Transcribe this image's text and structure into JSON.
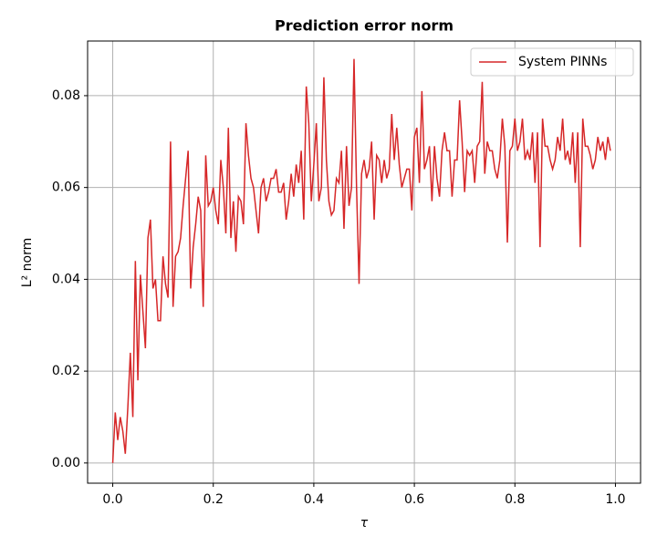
{
  "chart_data": {
    "type": "line",
    "title": "Prediction error norm",
    "xlabel": "τ",
    "ylabel": "L² norm",
    "x": [
      0,
      0.005,
      0.01,
      0.015,
      0.02,
      0.025,
      0.03,
      0.035,
      0.04,
      0.045,
      0.05,
      0.055,
      0.06,
      0.065,
      0.07,
      0.075,
      0.08,
      0.085,
      0.09,
      0.095,
      0.1,
      0.105,
      0.11,
      0.115,
      0.12,
      0.125,
      0.13,
      0.135,
      0.14,
      0.145,
      0.15,
      0.155,
      0.16,
      0.165,
      0.17,
      0.175,
      0.18,
      0.185,
      0.19,
      0.195,
      0.2,
      0.205,
      0.21,
      0.215,
      0.22,
      0.225,
      0.23,
      0.235,
      0.24,
      0.245,
      0.25,
      0.255,
      0.26,
      0.265,
      0.27,
      0.275,
      0.28,
      0.285,
      0.29,
      0.295,
      0.3,
      0.305,
      0.31,
      0.315,
      0.32,
      0.325,
      0.33,
      0.335,
      0.34,
      0.345,
      0.35,
      0.355,
      0.36,
      0.365,
      0.37,
      0.375,
      0.38,
      0.385,
      0.39,
      0.395,
      0.4,
      0.405,
      0.41,
      0.415,
      0.42,
      0.425,
      0.43,
      0.435,
      0.44,
      0.445,
      0.45,
      0.455,
      0.46,
      0.465,
      0.47,
      0.475,
      0.48,
      0.485,
      0.49,
      0.495,
      0.5,
      0.505,
      0.51,
      0.515,
      0.52,
      0.525,
      0.53,
      0.535,
      0.54,
      0.545,
      0.55,
      0.555,
      0.56,
      0.565,
      0.57,
      0.575,
      0.58,
      0.585,
      0.59,
      0.595,
      0.6,
      0.605,
      0.61,
      0.615,
      0.62,
      0.625,
      0.63,
      0.635,
      0.64,
      0.645,
      0.65,
      0.655,
      0.66,
      0.665,
      0.67,
      0.675,
      0.68,
      0.685,
      0.69,
      0.695,
      0.7,
      0.705,
      0.71,
      0.715,
      0.72,
      0.725,
      0.73,
      0.735,
      0.74,
      0.745,
      0.75,
      0.755,
      0.76,
      0.765,
      0.77,
      0.775,
      0.78,
      0.785,
      0.79,
      0.795,
      0.8,
      0.805,
      0.81,
      0.815,
      0.82,
      0.825,
      0.83,
      0.835,
      0.84,
      0.845,
      0.85,
      0.855,
      0.86,
      0.865,
      0.87,
      0.875,
      0.88,
      0.885,
      0.89,
      0.895,
      0.9,
      0.905,
      0.91,
      0.915,
      0.92,
      0.925,
      0.93,
      0.935,
      0.94,
      0.945,
      0.95,
      0.955,
      0.96,
      0.965,
      0.97,
      0.975,
      0.98,
      0.985,
      0.99
    ],
    "series": [
      {
        "name": "System PINNs",
        "color": "#d62728",
        "values": [
          0.0,
          0.011,
          0.005,
          0.01,
          0.007,
          0.002,
          0.012,
          0.024,
          0.01,
          0.044,
          0.018,
          0.041,
          0.033,
          0.025,
          0.049,
          0.053,
          0.038,
          0.04,
          0.031,
          0.031,
          0.045,
          0.039,
          0.036,
          0.07,
          0.034,
          0.045,
          0.046,
          0.049,
          0.056,
          0.062,
          0.068,
          0.038,
          0.047,
          0.052,
          0.058,
          0.055,
          0.034,
          0.067,
          0.056,
          0.057,
          0.06,
          0.055,
          0.052,
          0.066,
          0.06,
          0.05,
          0.073,
          0.049,
          0.057,
          0.046,
          0.058,
          0.057,
          0.052,
          0.074,
          0.067,
          0.062,
          0.06,
          0.055,
          0.05,
          0.06,
          0.062,
          0.057,
          0.059,
          0.062,
          0.062,
          0.064,
          0.059,
          0.059,
          0.061,
          0.053,
          0.057,
          0.063,
          0.058,
          0.065,
          0.061,
          0.068,
          0.053,
          0.082,
          0.074,
          0.057,
          0.065,
          0.074,
          0.057,
          0.06,
          0.084,
          0.066,
          0.057,
          0.054,
          0.055,
          0.062,
          0.061,
          0.068,
          0.051,
          0.069,
          0.056,
          0.06,
          0.088,
          0.06,
          0.039,
          0.063,
          0.066,
          0.062,
          0.064,
          0.07,
          0.053,
          0.067,
          0.066,
          0.061,
          0.066,
          0.062,
          0.064,
          0.076,
          0.066,
          0.073,
          0.065,
          0.06,
          0.062,
          0.064,
          0.064,
          0.055,
          0.071,
          0.073,
          0.061,
          0.081,
          0.064,
          0.066,
          0.069,
          0.057,
          0.069,
          0.062,
          0.058,
          0.068,
          0.072,
          0.068,
          0.068,
          0.058,
          0.066,
          0.066,
          0.079,
          0.07,
          0.059,
          0.068,
          0.067,
          0.068,
          0.061,
          0.069,
          0.07,
          0.083,
          0.063,
          0.07,
          0.068,
          0.068,
          0.064,
          0.062,
          0.066,
          0.075,
          0.069,
          0.048,
          0.068,
          0.069,
          0.075,
          0.068,
          0.07,
          0.075,
          0.066,
          0.068,
          0.066,
          0.072,
          0.061,
          0.072,
          0.047,
          0.075,
          0.069,
          0.069,
          0.066,
          0.064,
          0.066,
          0.071,
          0.068,
          0.075,
          0.066,
          0.068,
          0.065,
          0.072,
          0.061,
          0.072,
          0.047,
          0.075,
          0.069,
          0.069,
          0.067,
          0.064,
          0.066,
          0.071,
          0.068,
          0.07,
          0.066,
          0.071,
          0.068
        ]
      }
    ],
    "xlim": [
      -0.05,
      1.05
    ],
    "ylim": [
      -0.0044,
      0.0919
    ],
    "xticks": [
      {
        "value": 0,
        "label": "0.0"
      },
      0.2,
      0.4,
      0.6,
      0.8,
      {
        "value": 1,
        "label": "1.0"
      }
    ],
    "yticks": [
      {
        "value": 0,
        "label": "0.00"
      },
      0.02,
      0.04,
      0.06,
      0.08
    ],
    "grid": true,
    "legend": "upper right"
  }
}
